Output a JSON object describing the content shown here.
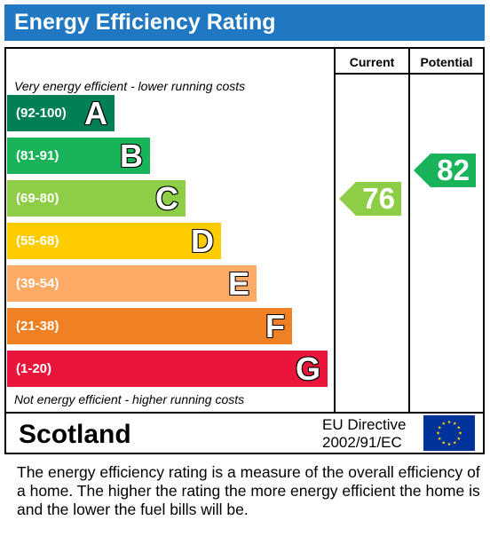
{
  "header": {
    "title": "Energy Efficiency Rating",
    "bg_color": "#1f78c1"
  },
  "columns": {
    "current_label": "Current",
    "potential_label": "Potential"
  },
  "notes": {
    "top": "Very energy efficient - lower running costs",
    "bottom": "Not energy efficient - higher running costs"
  },
  "bands": [
    {
      "range": "(92-100)",
      "letter": "A",
      "color": "#008054"
    },
    {
      "range": "(81-91)",
      "letter": "B",
      "color": "#19b459"
    },
    {
      "range": "(69-80)",
      "letter": "C",
      "color": "#8dce46"
    },
    {
      "range": "(55-68)",
      "letter": "D",
      "color": "#ffcc00"
    },
    {
      "range": "(39-54)",
      "letter": "E",
      "color": "#fcaa65"
    },
    {
      "range": "(21-38)",
      "letter": "F",
      "color": "#ef8023"
    },
    {
      "range": "(1-20)",
      "letter": "G",
      "color": "#e9153b"
    }
  ],
  "ratings": {
    "current": {
      "value": "76",
      "band": "C",
      "color": "#8dce46"
    },
    "potential": {
      "value": "82",
      "band": "B",
      "color": "#19b459"
    }
  },
  "footer_row": {
    "country": "Scotland",
    "eu_directive_line1": "EU Directive",
    "eu_directive_line2": "2002/91/EC",
    "flag_icon": "eu-flag-icon"
  },
  "description": "The energy efficiency rating is a measure of the overall efficiency of a home.  The higher the rating the more energy efficient the home is and the lower the fuel bills will be."
}
